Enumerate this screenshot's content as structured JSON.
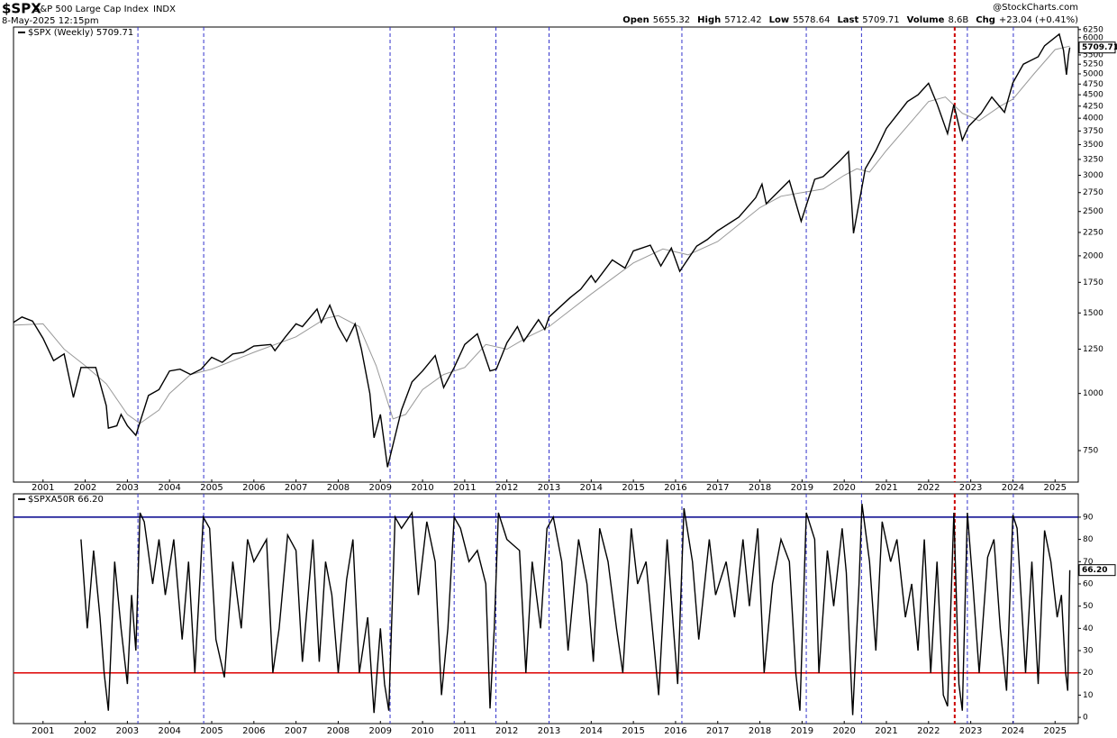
{
  "header": {
    "symbol": "$SPX",
    "name": "S&P 500 Large Cap Index",
    "exchange": "INDX",
    "date": "8-May-2025 12:15pm",
    "brand": "@StockCharts.com",
    "quote": [
      {
        "label": "Open",
        "value": "5655.32"
      },
      {
        "label": "High",
        "value": "5712.42"
      },
      {
        "label": "Low",
        "value": "5578.64"
      },
      {
        "label": "Last",
        "value": "5709.71"
      },
      {
        "label": "Volume",
        "value": "8.6B"
      },
      {
        "label": "Chg",
        "value": "+23.04 (+0.41%)"
      }
    ]
  },
  "chart_data": [
    {
      "type": "line",
      "log_y": true,
      "xlim": [
        2000.3,
        2025.55
      ],
      "ylim": [
        640,
        6330
      ],
      "xticks": [
        2001,
        2002,
        2003,
        2004,
        2005,
        2006,
        2007,
        2008,
        2009,
        2010,
        2011,
        2012,
        2013,
        2014,
        2015,
        2016,
        2017,
        2018,
        2019,
        2020,
        2021,
        2022,
        2023,
        2024,
        2025
      ],
      "yticks": [
        750,
        1000,
        1250,
        1500,
        1750,
        2000,
        2250,
        2500,
        2750,
        3000,
        3250,
        3500,
        3750,
        4000,
        4250,
        4500,
        4750,
        5000,
        5250,
        5500,
        5750,
        6000,
        6250
      ],
      "vlines": [
        {
          "x": 2003.25,
          "color": "#3333cc"
        },
        {
          "x": 2004.81,
          "color": "#3333cc"
        },
        {
          "x": 2009.23,
          "color": "#3333cc"
        },
        {
          "x": 2010.75,
          "color": "#3333cc"
        },
        {
          "x": 2011.74,
          "color": "#3333cc"
        },
        {
          "x": 2013.0,
          "color": "#3333cc"
        },
        {
          "x": 2016.15,
          "color": "#3333cc"
        },
        {
          "x": 2019.1,
          "color": "#3333cc"
        },
        {
          "x": 2020.41,
          "color": "#3333cc"
        },
        {
          "x": 2022.62,
          "color": "#cc0000"
        },
        {
          "x": 2022.92,
          "color": "#3333cc"
        },
        {
          "x": 2024.01,
          "color": "#3333cc"
        }
      ],
      "series": [
        {
          "name": "$SPX (Weekly) 5709.71",
          "color": "#000000",
          "value_label": "5709.71",
          "x": [
            2000.3,
            2000.5,
            2000.75,
            2001.0,
            2001.25,
            2001.5,
            2001.72,
            2001.9,
            2002.25,
            2002.5,
            2002.55,
            2002.75,
            2002.85,
            2003.0,
            2003.2,
            2003.5,
            2003.75,
            2004.0,
            2004.25,
            2004.5,
            2004.75,
            2005.0,
            2005.25,
            2005.5,
            2005.75,
            2006.0,
            2006.4,
            2006.5,
            2006.75,
            2007.0,
            2007.15,
            2007.5,
            2007.6,
            2007.8,
            2008.0,
            2008.2,
            2008.4,
            2008.55,
            2008.75,
            2008.85,
            2009.0,
            2009.17,
            2009.5,
            2009.75,
            2010.0,
            2010.3,
            2010.5,
            2010.75,
            2011.0,
            2011.3,
            2011.6,
            2011.75,
            2012.0,
            2012.25,
            2012.4,
            2012.75,
            2012.9,
            2013.0,
            2013.5,
            2013.75,
            2014.0,
            2014.1,
            2014.5,
            2014.8,
            2015.0,
            2015.4,
            2015.65,
            2015.9,
            2016.1,
            2016.5,
            2016.75,
            2017.0,
            2017.5,
            2017.9,
            2018.05,
            2018.15,
            2018.7,
            2018.98,
            2019.3,
            2019.5,
            2019.9,
            2020.1,
            2020.22,
            2020.5,
            2020.75,
            2021.0,
            2021.5,
            2021.75,
            2022.0,
            2022.2,
            2022.45,
            2022.6,
            2022.8,
            2022.95,
            2023.25,
            2023.5,
            2023.8,
            2024.0,
            2024.25,
            2024.6,
            2024.75,
            2025.1,
            2025.2,
            2025.27,
            2025.32,
            2025.35
          ],
          "values": [
            1430,
            1470,
            1440,
            1320,
            1180,
            1220,
            980,
            1140,
            1140,
            940,
            840,
            850,
            900,
            850,
            810,
            990,
            1020,
            1120,
            1130,
            1100,
            1130,
            1200,
            1170,
            1220,
            1230,
            1270,
            1280,
            1240,
            1330,
            1420,
            1400,
            1530,
            1430,
            1560,
            1400,
            1300,
            1420,
            1250,
            1000,
            800,
            900,
            690,
            920,
            1060,
            1120,
            1210,
            1030,
            1140,
            1280,
            1350,
            1120,
            1130,
            1290,
            1400,
            1300,
            1450,
            1380,
            1470,
            1620,
            1690,
            1810,
            1750,
            1960,
            1880,
            2050,
            2110,
            1900,
            2080,
            1850,
            2100,
            2170,
            2270,
            2430,
            2680,
            2870,
            2600,
            2920,
            2380,
            2940,
            2980,
            3230,
            3380,
            2240,
            3100,
            3400,
            3800,
            4350,
            4500,
            4770,
            4300,
            3700,
            4280,
            3580,
            3840,
            4100,
            4450,
            4120,
            4780,
            5250,
            5450,
            5760,
            6110,
            5630,
            4980,
            5500,
            5709.71
          ]
        },
        {
          "color": "#999999",
          "x": [
            2000.3,
            2001.0,
            2001.5,
            2002.0,
            2002.5,
            2003.0,
            2003.3,
            2003.75,
            2004.0,
            2004.5,
            2005.0,
            2006.0,
            2007.0,
            2007.7,
            2008.0,
            2008.5,
            2008.9,
            2009.3,
            2009.6,
            2010.0,
            2010.5,
            2011.0,
            2011.5,
            2012.0,
            2012.5,
            2013.0,
            2014.0,
            2015.0,
            2015.7,
            2016.3,
            2017.0,
            2018.0,
            2018.5,
            2019.0,
            2019.5,
            2020.0,
            2020.3,
            2020.6,
            2021.0,
            2022.0,
            2022.4,
            2022.8,
            2023.2,
            2023.7,
            2024.0,
            2024.5,
            2025.0,
            2025.35
          ],
          "values": [
            1410,
            1420,
            1250,
            1150,
            1050,
            900,
            860,
            920,
            1000,
            1100,
            1130,
            1230,
            1330,
            1460,
            1480,
            1400,
            1150,
            880,
            900,
            1020,
            1100,
            1140,
            1280,
            1250,
            1330,
            1400,
            1650,
            1930,
            2070,
            2010,
            2150,
            2550,
            2700,
            2750,
            2800,
            3000,
            3100,
            3050,
            3400,
            4350,
            4450,
            4100,
            3950,
            4250,
            4400,
            5000,
            5650,
            5750
          ]
        }
      ]
    },
    {
      "type": "line",
      "log_y": false,
      "xlim": [
        2000.3,
        2025.55
      ],
      "ylim": [
        -2.8,
        100.5
      ],
      "xticks": [
        2001,
        2002,
        2003,
        2004,
        2005,
        2006,
        2007,
        2008,
        2009,
        2010,
        2011,
        2012,
        2013,
        2014,
        2015,
        2016,
        2017,
        2018,
        2019,
        2020,
        2021,
        2022,
        2023,
        2024,
        2025
      ],
      "yticks": [
        0,
        10,
        20,
        30,
        40,
        50,
        60,
        70,
        80,
        90
      ],
      "hlines": [
        {
          "value": 90,
          "color": "#00008b"
        },
        {
          "value": 20,
          "color": "#dd0000"
        }
      ],
      "vlines": [
        {
          "x": 2003.25,
          "color": "#3333cc"
        },
        {
          "x": 2004.81,
          "color": "#3333cc"
        },
        {
          "x": 2009.23,
          "color": "#3333cc"
        },
        {
          "x": 2010.75,
          "color": "#3333cc"
        },
        {
          "x": 2011.74,
          "color": "#3333cc"
        },
        {
          "x": 2013.0,
          "color": "#3333cc"
        },
        {
          "x": 2016.15,
          "color": "#3333cc"
        },
        {
          "x": 2019.1,
          "color": "#3333cc"
        },
        {
          "x": 2020.41,
          "color": "#3333cc"
        },
        {
          "x": 2022.62,
          "color": "#cc0000"
        },
        {
          "x": 2022.92,
          "color": "#3333cc"
        },
        {
          "x": 2024.01,
          "color": "#3333cc"
        }
      ],
      "series": [
        {
          "name": "$SPXA50R 66.20",
          "color": "#000000",
          "value_label": "66.20",
          "x": [
            2001.9,
            2002.05,
            2002.2,
            2002.35,
            2002.45,
            2002.55,
            2002.7,
            2002.85,
            2003.0,
            2003.1,
            2003.2,
            2003.3,
            2003.4,
            2003.6,
            2003.75,
            2003.9,
            2004.1,
            2004.3,
            2004.45,
            2004.6,
            2004.8,
            2004.95,
            2005.1,
            2005.3,
            2005.5,
            2005.7,
            2005.85,
            2006.0,
            2006.3,
            2006.45,
            2006.6,
            2006.8,
            2007.0,
            2007.15,
            2007.4,
            2007.55,
            2007.7,
            2007.85,
            2008.0,
            2008.2,
            2008.35,
            2008.5,
            2008.7,
            2008.85,
            2009.0,
            2009.1,
            2009.2,
            2009.35,
            2009.5,
            2009.75,
            2009.9,
            2010.1,
            2010.3,
            2010.45,
            2010.6,
            2010.75,
            2010.9,
            2011.1,
            2011.3,
            2011.5,
            2011.6,
            2011.7,
            2011.8,
            2012.0,
            2012.3,
            2012.45,
            2012.6,
            2012.8,
            2012.95,
            2013.1,
            2013.3,
            2013.45,
            2013.7,
            2013.9,
            2014.05,
            2014.2,
            2014.4,
            2014.6,
            2014.75,
            2014.95,
            2015.1,
            2015.3,
            2015.45,
            2015.6,
            2015.8,
            2015.95,
            2016.05,
            2016.2,
            2016.4,
            2016.55,
            2016.8,
            2016.95,
            2017.2,
            2017.4,
            2017.6,
            2017.75,
            2017.95,
            2018.1,
            2018.3,
            2018.5,
            2018.7,
            2018.85,
            2018.95,
            2019.1,
            2019.3,
            2019.4,
            2019.6,
            2019.75,
            2019.95,
            2020.05,
            2020.2,
            2020.35,
            2020.42,
            2020.6,
            2020.75,
            2020.9,
            2021.1,
            2021.25,
            2021.45,
            2021.6,
            2021.75,
            2021.9,
            2022.05,
            2022.2,
            2022.35,
            2022.45,
            2022.6,
            2022.72,
            2022.8,
            2022.92,
            2023.05,
            2023.2,
            2023.4,
            2023.55,
            2023.7,
            2023.85,
            2024.0,
            2024.1,
            2024.3,
            2024.45,
            2024.6,
            2024.75,
            2024.9,
            2025.05,
            2025.15,
            2025.25,
            2025.3,
            2025.35
          ],
          "values": [
            80,
            40,
            75,
            45,
            20,
            3,
            70,
            40,
            15,
            55,
            30,
            92,
            88,
            60,
            80,
            55,
            80,
            35,
            70,
            20,
            90,
            85,
            35,
            18,
            70,
            40,
            80,
            70,
            80,
            20,
            40,
            82,
            75,
            25,
            80,
            25,
            70,
            55,
            20,
            62,
            80,
            20,
            45,
            2,
            40,
            15,
            3,
            90,
            85,
            92,
            55,
            88,
            70,
            10,
            40,
            90,
            85,
            70,
            75,
            60,
            4,
            40,
            92,
            80,
            75,
            20,
            70,
            40,
            85,
            90,
            70,
            30,
            80,
            60,
            25,
            85,
            70,
            40,
            20,
            85,
            60,
            70,
            40,
            10,
            80,
            40,
            15,
            94,
            70,
            35,
            80,
            55,
            70,
            45,
            80,
            50,
            85,
            20,
            60,
            80,
            70,
            20,
            3,
            92,
            80,
            20,
            75,
            50,
            85,
            65,
            1,
            60,
            96,
            70,
            30,
            88,
            70,
            80,
            45,
            60,
            30,
            80,
            20,
            70,
            10,
            5,
            92,
            15,
            3,
            92,
            60,
            20,
            72,
            80,
            40,
            12,
            91,
            85,
            20,
            70,
            15,
            84,
            70,
            45,
            55,
            20,
            12,
            66.2
          ]
        }
      ]
    }
  ]
}
